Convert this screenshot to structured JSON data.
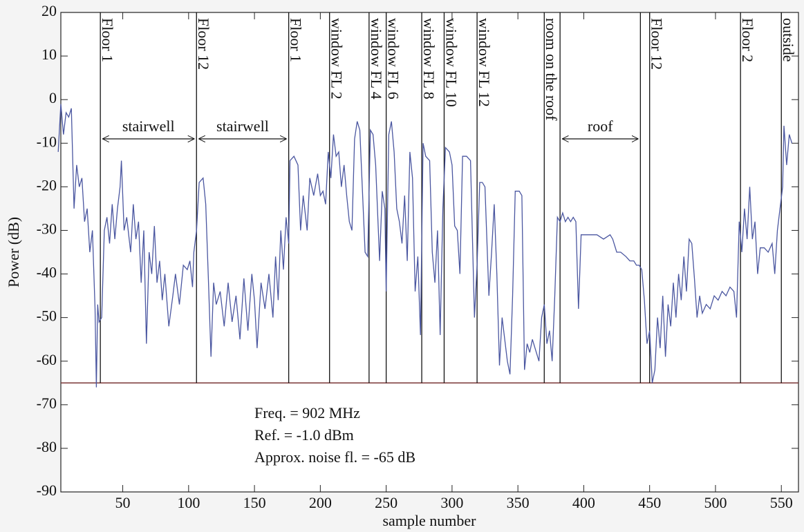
{
  "chart_data": {
    "type": "line",
    "xlabel": "sample number",
    "ylabel": "Power (dB)",
    "x": [
      1,
      3,
      5,
      7,
      9,
      11,
      13,
      15,
      17,
      19,
      21,
      23,
      25,
      27,
      29,
      30,
      31,
      32,
      34,
      36,
      38,
      40,
      42,
      44,
      46,
      48,
      49,
      51,
      53,
      56,
      58,
      60,
      62,
      64,
      66,
      68,
      70,
      72,
      74,
      76,
      78,
      80,
      82,
      85,
      88,
      90,
      93,
      96,
      99,
      101,
      103,
      104,
      106,
      108,
      111,
      113,
      115,
      117,
      119,
      121,
      124,
      127,
      130,
      133,
      136,
      139,
      142,
      145,
      148,
      150,
      152,
      155,
      158,
      161,
      164,
      166,
      168,
      170,
      172,
      174,
      176,
      177,
      180,
      183,
      185,
      187,
      190,
      192,
      195,
      198,
      200,
      202,
      204,
      206,
      208,
      210,
      212,
      214,
      216,
      218,
      220,
      222,
      224,
      226,
      228,
      230,
      232,
      234,
      236,
      238,
      240,
      242,
      245,
      247,
      249,
      250,
      252,
      254,
      256,
      258,
      260,
      262,
      264,
      266,
      268,
      270,
      272,
      274,
      276,
      278,
      280,
      283,
      285,
      287,
      289,
      291,
      293,
      295,
      298,
      300,
      302,
      304,
      306,
      308,
      311,
      314,
      317,
      319,
      321,
      323,
      325,
      328,
      330,
      332,
      334,
      336,
      338,
      340,
      342,
      344,
      346,
      348,
      351,
      353,
      355,
      357,
      359,
      361,
      364,
      366,
      368,
      370,
      372,
      374,
      376,
      378,
      380,
      382,
      384,
      386,
      388,
      390,
      392,
      394,
      396,
      398,
      400,
      405,
      410,
      415,
      420,
      422,
      425,
      428,
      432,
      435,
      438,
      440,
      442,
      444,
      446,
      448,
      450,
      452,
      454,
      456,
      458,
      460,
      462,
      464,
      466,
      468,
      470,
      472,
      474,
      476,
      478,
      480,
      482,
      484,
      486,
      488,
      490,
      493,
      496,
      499,
      502,
      505,
      508,
      511,
      514,
      516,
      518,
      520,
      522,
      524,
      526,
      528,
      530,
      532,
      534,
      537,
      540,
      543,
      545,
      547,
      549,
      551,
      552,
      554,
      556,
      558
    ],
    "series": [
      {
        "name": "Power",
        "color": "#4a56a0",
        "values": [
          -12,
          -1,
          -8,
          -3,
          -4,
          -2,
          -25,
          -15,
          -20,
          -18,
          -28,
          -25,
          -35,
          -30,
          -48,
          -66,
          -47,
          -51,
          -50,
          -30,
          -27,
          -33,
          -24,
          -32,
          -25,
          -20,
          -14,
          -30,
          -27,
          -35,
          -24,
          -32,
          -28,
          -42,
          -30,
          -56,
          -35,
          -40,
          -29,
          -42,
          -37,
          -46,
          -40,
          -52,
          -45,
          -40,
          -47,
          -38,
          -39,
          -37,
          -43,
          -35,
          -30,
          -19,
          -18,
          -24,
          -41,
          -59,
          -42,
          -47,
          -44,
          -52,
          -42,
          -51,
          -45,
          -55,
          -41,
          -53,
          -40,
          -46,
          -57,
          -42,
          -48,
          -40,
          -50,
          -36,
          -46,
          -30,
          -39,
          -27,
          -33,
          -14,
          -13,
          -15,
          -30,
          -22,
          -30,
          -18,
          -22,
          -17,
          -22,
          -21,
          -24,
          -12,
          -18,
          -8,
          -13,
          -12,
          -20,
          -15,
          -22,
          -28,
          -30,
          -9,
          -5,
          -7,
          -21,
          -35,
          -36,
          -7,
          -8,
          -15,
          -37,
          -21,
          -25,
          -44,
          -8,
          -5,
          -12,
          -25,
          -28,
          -33,
          -22,
          -37,
          -12,
          -18,
          -44,
          -36,
          -54,
          -10,
          -13,
          -14,
          -35,
          -42,
          -30,
          -54,
          -25,
          -11,
          -12,
          -15,
          -29,
          -30,
          -40,
          -13,
          -13,
          -14,
          -50,
          -38,
          -19,
          -19,
          -20,
          -45,
          -35,
          -24,
          -40,
          -61,
          -50,
          -55,
          -60,
          -63,
          -45,
          -21,
          -21,
          -22,
          -62,
          -56,
          -58,
          -55,
          -58,
          -60,
          -50,
          -47,
          -56,
          -53,
          -60,
          -45,
          -27,
          -28,
          -26,
          -28,
          -27,
          -28,
          -27,
          -28,
          -48,
          -31,
          -31,
          -31,
          -31,
          -32,
          -31,
          -32,
          -35,
          -35,
          -36,
          -37,
          -37,
          -38,
          -38,
          -39,
          -46,
          -56,
          -53,
          -65,
          -62,
          -50,
          -57,
          -45,
          -59,
          -47,
          -52,
          -42,
          -50,
          -40,
          -46,
          -36,
          -44,
          -32,
          -33,
          -41,
          -50,
          -45,
          -49,
          -47,
          -48,
          -45,
          -46,
          -44,
          -45,
          -43,
          -44,
          -50,
          -28,
          -35,
          -25,
          -32,
          -20,
          -32,
          -28,
          -40,
          -34,
          -34,
          -35,
          -33,
          -40,
          -30,
          -25,
          -20,
          -6,
          -15,
          -8,
          -10
        ]
      }
    ],
    "xlim": [
      3,
      563
    ],
    "ylim": [
      -90,
      20
    ],
    "xticks": [
      50,
      100,
      150,
      200,
      250,
      300,
      350,
      400,
      450,
      500,
      550
    ],
    "yticks": [
      -90,
      -80,
      -70,
      -60,
      -50,
      -40,
      -30,
      -20,
      -10,
      0,
      10,
      20
    ],
    "markers": [
      {
        "x": 33,
        "label": "Floor 1"
      },
      {
        "x": 106,
        "label": "Floor 12"
      },
      {
        "x": 176,
        "label": "Floor 1"
      },
      {
        "x": 207,
        "label": "window FL 2"
      },
      {
        "x": 237,
        "label": "window FL 4"
      },
      {
        "x": 250,
        "label": "window FL 6"
      },
      {
        "x": 277,
        "label": "window FL 8"
      },
      {
        "x": 294,
        "label": "window FL 10"
      },
      {
        "x": 319,
        "label": "window FL 12"
      },
      {
        "x": 370,
        "label": "room on the roof"
      },
      {
        "x": 382,
        "label": null
      },
      {
        "x": 443,
        "label": null
      },
      {
        "x": 450,
        "label": "Floor 12"
      },
      {
        "x": 519,
        "label": "Floor 2"
      },
      {
        "x": 550,
        "label": "outside"
      }
    ],
    "spans": [
      "stairwell",
      "stairwell",
      "roof"
    ],
    "noise_floor": -65,
    "noise_color": "#7a3535",
    "notes": [
      "Freq. = 902 MHz",
      "Ref. = -1.0 dBm",
      "Approx. noise fl. = -65 dB"
    ]
  }
}
